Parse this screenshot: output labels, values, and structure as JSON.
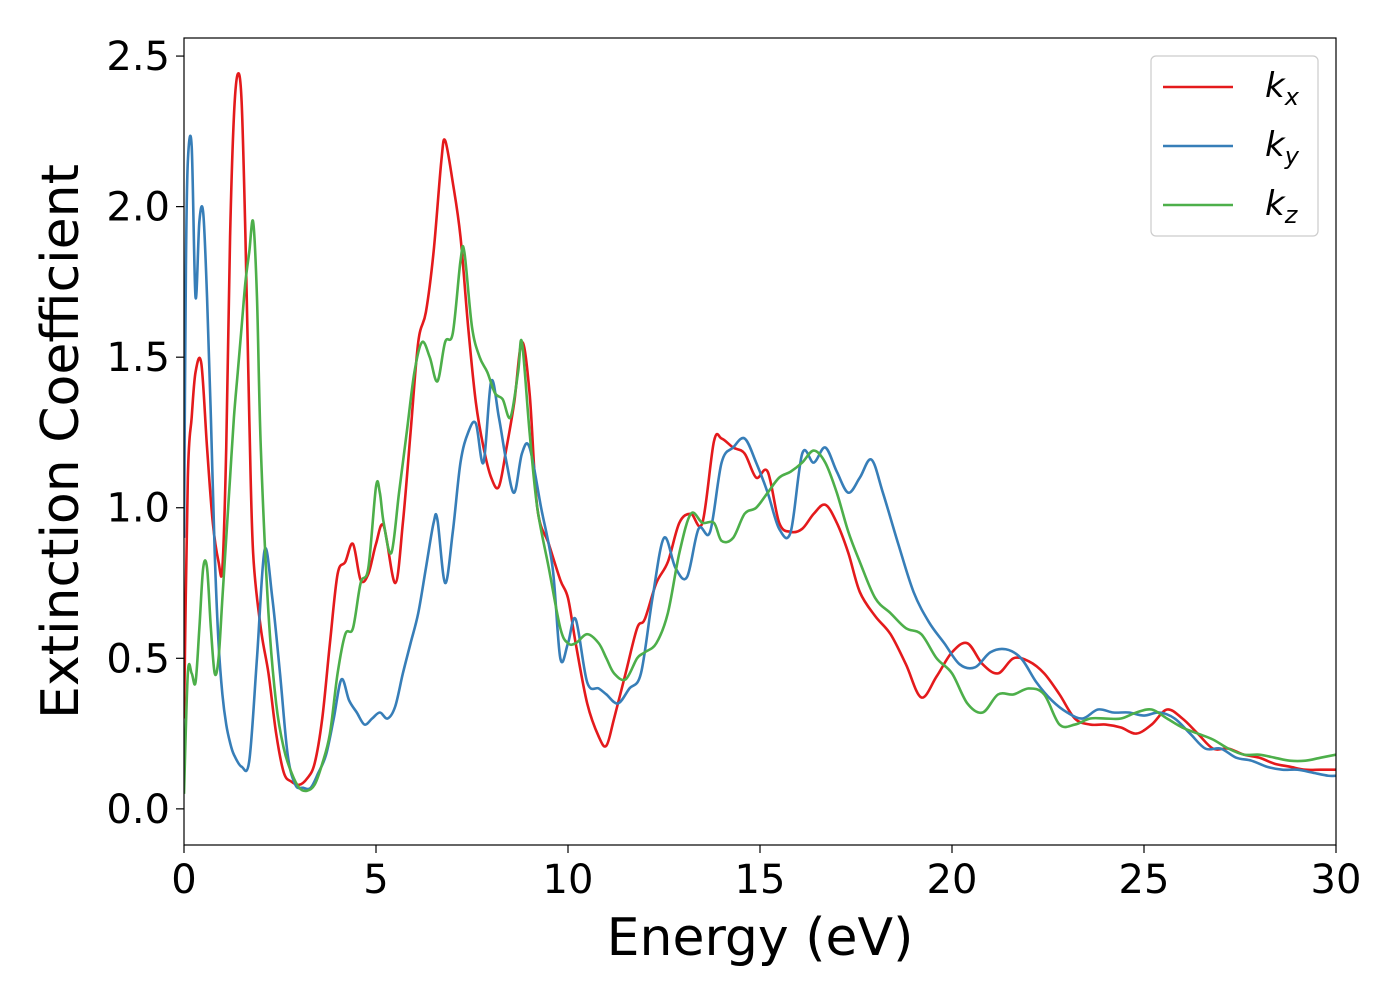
{
  "chart_data": {
    "type": "line",
    "xlabel": "Energy (eV)",
    "ylabel": "Extinction Coefficient",
    "xlim": [
      0,
      30
    ],
    "ylim": [
      -0.12,
      2.56
    ],
    "xticks": [
      0,
      5,
      10,
      15,
      20,
      25,
      30
    ],
    "xtick_labels": [
      "0",
      "5",
      "10",
      "15",
      "20",
      "25",
      "30"
    ],
    "yticks": [
      0.0,
      0.5,
      1.0,
      1.5,
      2.0,
      2.5
    ],
    "ytick_labels": [
      "0.0",
      "0.5",
      "1.0",
      "1.5",
      "2.0",
      "2.5"
    ],
    "grid": false,
    "legend_position": "top-right",
    "series": [
      {
        "name": "k",
        "subscript": "x",
        "color": "#e41a1c",
        "x": [
          0,
          0.1,
          0.2,
          0.3,
          0.45,
          0.6,
          0.75,
          0.9,
          1.0,
          1.1,
          1.2,
          1.3,
          1.4,
          1.5,
          1.6,
          1.7,
          1.8,
          2.0,
          2.2,
          2.4,
          2.6,
          2.8,
          3.0,
          3.2,
          3.4,
          3.6,
          3.8,
          4.0,
          4.2,
          4.4,
          4.6,
          4.8,
          5.0,
          5.2,
          5.5,
          5.7,
          5.9,
          6.1,
          6.3,
          6.5,
          6.7,
          6.8,
          7.0,
          7.2,
          7.4,
          7.6,
          7.8,
          8.0,
          8.2,
          8.4,
          8.6,
          8.8,
          9.0,
          9.2,
          9.5,
          9.8,
          10.0,
          10.2,
          10.5,
          10.8,
          11.0,
          11.2,
          11.5,
          11.8,
          12.0,
          12.3,
          12.6,
          12.9,
          13.2,
          13.5,
          13.8,
          14.0,
          14.3,
          14.6,
          14.9,
          15.2,
          15.5,
          15.8,
          16.1,
          16.4,
          16.7,
          17.0,
          17.3,
          17.6,
          18.0,
          18.4,
          18.8,
          19.2,
          19.6,
          20.0,
          20.4,
          20.8,
          21.2,
          21.6,
          22.0,
          22.4,
          22.8,
          23.2,
          23.6,
          24.0,
          24.4,
          24.8,
          25.2,
          25.6,
          26.0,
          26.4,
          26.8,
          27.2,
          27.6,
          28.0,
          28.4,
          28.8,
          29.2,
          29.6,
          30.0
        ],
        "values": [
          0.3,
          1.1,
          1.3,
          1.45,
          1.48,
          1.2,
          0.95,
          0.82,
          0.8,
          1.2,
          1.9,
          2.3,
          2.44,
          2.35,
          1.9,
          1.3,
          0.85,
          0.6,
          0.45,
          0.25,
          0.12,
          0.09,
          0.08,
          0.1,
          0.15,
          0.3,
          0.55,
          0.78,
          0.82,
          0.88,
          0.76,
          0.78,
          0.88,
          0.94,
          0.75,
          0.95,
          1.25,
          1.55,
          1.65,
          1.85,
          2.15,
          2.22,
          2.08,
          1.9,
          1.6,
          1.35,
          1.2,
          1.1,
          1.07,
          1.2,
          1.35,
          1.55,
          1.38,
          1.0,
          0.88,
          0.76,
          0.7,
          0.55,
          0.35,
          0.24,
          0.21,
          0.3,
          0.45,
          0.6,
          0.63,
          0.75,
          0.82,
          0.95,
          0.98,
          0.95,
          1.22,
          1.23,
          1.2,
          1.18,
          1.1,
          1.12,
          0.95,
          0.92,
          0.93,
          0.98,
          1.01,
          0.95,
          0.85,
          0.72,
          0.64,
          0.58,
          0.48,
          0.37,
          0.44,
          0.52,
          0.55,
          0.48,
          0.45,
          0.5,
          0.49,
          0.45,
          0.38,
          0.3,
          0.28,
          0.28,
          0.27,
          0.25,
          0.28,
          0.33,
          0.3,
          0.25,
          0.2,
          0.2,
          0.18,
          0.17,
          0.15,
          0.14,
          0.13,
          0.13,
          0.13
        ]
      },
      {
        "name": "k",
        "subscript": "y",
        "color": "#377eb8",
        "x": [
          0,
          0.05,
          0.1,
          0.2,
          0.3,
          0.4,
          0.5,
          0.6,
          0.7,
          0.8,
          0.9,
          1.0,
          1.1,
          1.2,
          1.3,
          1.5,
          1.7,
          1.9,
          2.1,
          2.3,
          2.5,
          2.7,
          2.9,
          3.1,
          3.3,
          3.5,
          3.7,
          3.9,
          4.1,
          4.3,
          4.5,
          4.7,
          4.9,
          5.1,
          5.3,
          5.5,
          5.7,
          5.9,
          6.1,
          6.3,
          6.5,
          6.6,
          6.8,
          7.0,
          7.2,
          7.4,
          7.6,
          7.8,
          8.0,
          8.2,
          8.4,
          8.6,
          8.8,
          9.0,
          9.3,
          9.6,
          9.8,
          10.0,
          10.2,
          10.5,
          10.8,
          11.0,
          11.3,
          11.6,
          11.9,
          12.2,
          12.5,
          12.8,
          13.1,
          13.4,
          13.7,
          14.0,
          14.3,
          14.6,
          14.9,
          15.2,
          15.5,
          15.8,
          16.1,
          16.4,
          16.7,
          17.0,
          17.3,
          17.6,
          17.9,
          18.2,
          18.6,
          19.0,
          19.4,
          19.8,
          20.2,
          20.6,
          21.0,
          21.4,
          21.8,
          22.2,
          22.6,
          23.0,
          23.4,
          23.8,
          24.2,
          24.6,
          25.0,
          25.4,
          25.8,
          26.2,
          26.6,
          27.0,
          27.4,
          27.8,
          28.2,
          28.6,
          29.0,
          29.4,
          29.8,
          30.0
        ],
        "values": [
          0.9,
          1.8,
          2.15,
          2.2,
          1.7,
          1.95,
          1.98,
          1.7,
          1.3,
          0.85,
          0.55,
          0.38,
          0.28,
          0.22,
          0.18,
          0.14,
          0.16,
          0.5,
          0.86,
          0.7,
          0.45,
          0.18,
          0.08,
          0.07,
          0.07,
          0.12,
          0.18,
          0.3,
          0.43,
          0.36,
          0.32,
          0.28,
          0.3,
          0.32,
          0.3,
          0.34,
          0.45,
          0.55,
          0.65,
          0.8,
          0.95,
          0.96,
          0.75,
          0.92,
          1.15,
          1.25,
          1.28,
          1.15,
          1.42,
          1.3,
          1.15,
          1.05,
          1.18,
          1.2,
          1.0,
          0.8,
          0.5,
          0.55,
          0.63,
          0.42,
          0.4,
          0.38,
          0.35,
          0.4,
          0.45,
          0.7,
          0.9,
          0.8,
          0.77,
          0.93,
          0.92,
          1.15,
          1.2,
          1.23,
          1.15,
          1.05,
          0.93,
          0.92,
          1.18,
          1.15,
          1.2,
          1.12,
          1.05,
          1.1,
          1.16,
          1.05,
          0.88,
          0.72,
          0.62,
          0.55,
          0.48,
          0.47,
          0.52,
          0.53,
          0.5,
          0.42,
          0.36,
          0.32,
          0.3,
          0.33,
          0.32,
          0.32,
          0.31,
          0.32,
          0.3,
          0.25,
          0.2,
          0.2,
          0.17,
          0.16,
          0.14,
          0.13,
          0.13,
          0.12,
          0.11,
          0.11
        ]
      },
      {
        "name": "k",
        "subscript": "z",
        "color": "#4daf4a",
        "x": [
          0,
          0.1,
          0.2,
          0.3,
          0.4,
          0.5,
          0.6,
          0.7,
          0.8,
          0.9,
          1.0,
          1.1,
          1.2,
          1.3,
          1.4,
          1.5,
          1.6,
          1.7,
          1.8,
          1.9,
          2.0,
          2.2,
          2.4,
          2.6,
          2.8,
          3.0,
          3.2,
          3.4,
          3.6,
          3.8,
          4.0,
          4.2,
          4.4,
          4.6,
          4.8,
          5.0,
          5.1,
          5.2,
          5.4,
          5.6,
          5.8,
          6.0,
          6.2,
          6.4,
          6.6,
          6.8,
          7.0,
          7.2,
          7.3,
          7.5,
          7.7,
          7.9,
          8.1,
          8.3,
          8.5,
          8.7,
          8.8,
          9.0,
          9.2,
          9.5,
          9.8,
          10.0,
          10.2,
          10.5,
          10.8,
          11.0,
          11.2,
          11.5,
          11.8,
          12.0,
          12.3,
          12.6,
          12.9,
          13.2,
          13.5,
          13.8,
          14.0,
          14.3,
          14.6,
          14.9,
          15.2,
          15.5,
          15.8,
          16.1,
          16.4,
          16.7,
          17.0,
          17.3,
          17.6,
          18.0,
          18.4,
          18.8,
          19.2,
          19.6,
          20.0,
          20.4,
          20.8,
          21.2,
          21.6,
          22.0,
          22.4,
          22.8,
          23.2,
          23.6,
          24.0,
          24.4,
          24.8,
          25.2,
          25.6,
          26.0,
          26.4,
          26.8,
          27.2,
          27.6,
          28.0,
          28.4,
          28.8,
          29.2,
          29.6,
          30.0
        ],
        "values": [
          0.05,
          0.45,
          0.45,
          0.42,
          0.6,
          0.8,
          0.8,
          0.6,
          0.45,
          0.5,
          0.7,
          0.9,
          1.1,
          1.3,
          1.45,
          1.6,
          1.75,
          1.85,
          1.95,
          1.7,
          1.2,
          0.65,
          0.35,
          0.2,
          0.12,
          0.07,
          0.06,
          0.08,
          0.15,
          0.25,
          0.45,
          0.58,
          0.6,
          0.75,
          0.8,
          1.07,
          1.05,
          0.95,
          0.85,
          1.05,
          1.25,
          1.45,
          1.55,
          1.5,
          1.42,
          1.55,
          1.58,
          1.82,
          1.85,
          1.6,
          1.5,
          1.45,
          1.38,
          1.36,
          1.3,
          1.45,
          1.55,
          1.25,
          1.0,
          0.8,
          0.6,
          0.55,
          0.55,
          0.58,
          0.55,
          0.5,
          0.45,
          0.43,
          0.5,
          0.52,
          0.55,
          0.65,
          0.85,
          0.98,
          0.95,
          0.95,
          0.89,
          0.9,
          0.98,
          1.0,
          1.05,
          1.1,
          1.12,
          1.15,
          1.19,
          1.15,
          1.05,
          0.92,
          0.82,
          0.7,
          0.65,
          0.6,
          0.58,
          0.5,
          0.45,
          0.35,
          0.32,
          0.38,
          0.38,
          0.4,
          0.38,
          0.28,
          0.28,
          0.3,
          0.3,
          0.3,
          0.32,
          0.33,
          0.3,
          0.27,
          0.25,
          0.23,
          0.2,
          0.18,
          0.18,
          0.17,
          0.16,
          0.16,
          0.17,
          0.18
        ]
      }
    ]
  }
}
